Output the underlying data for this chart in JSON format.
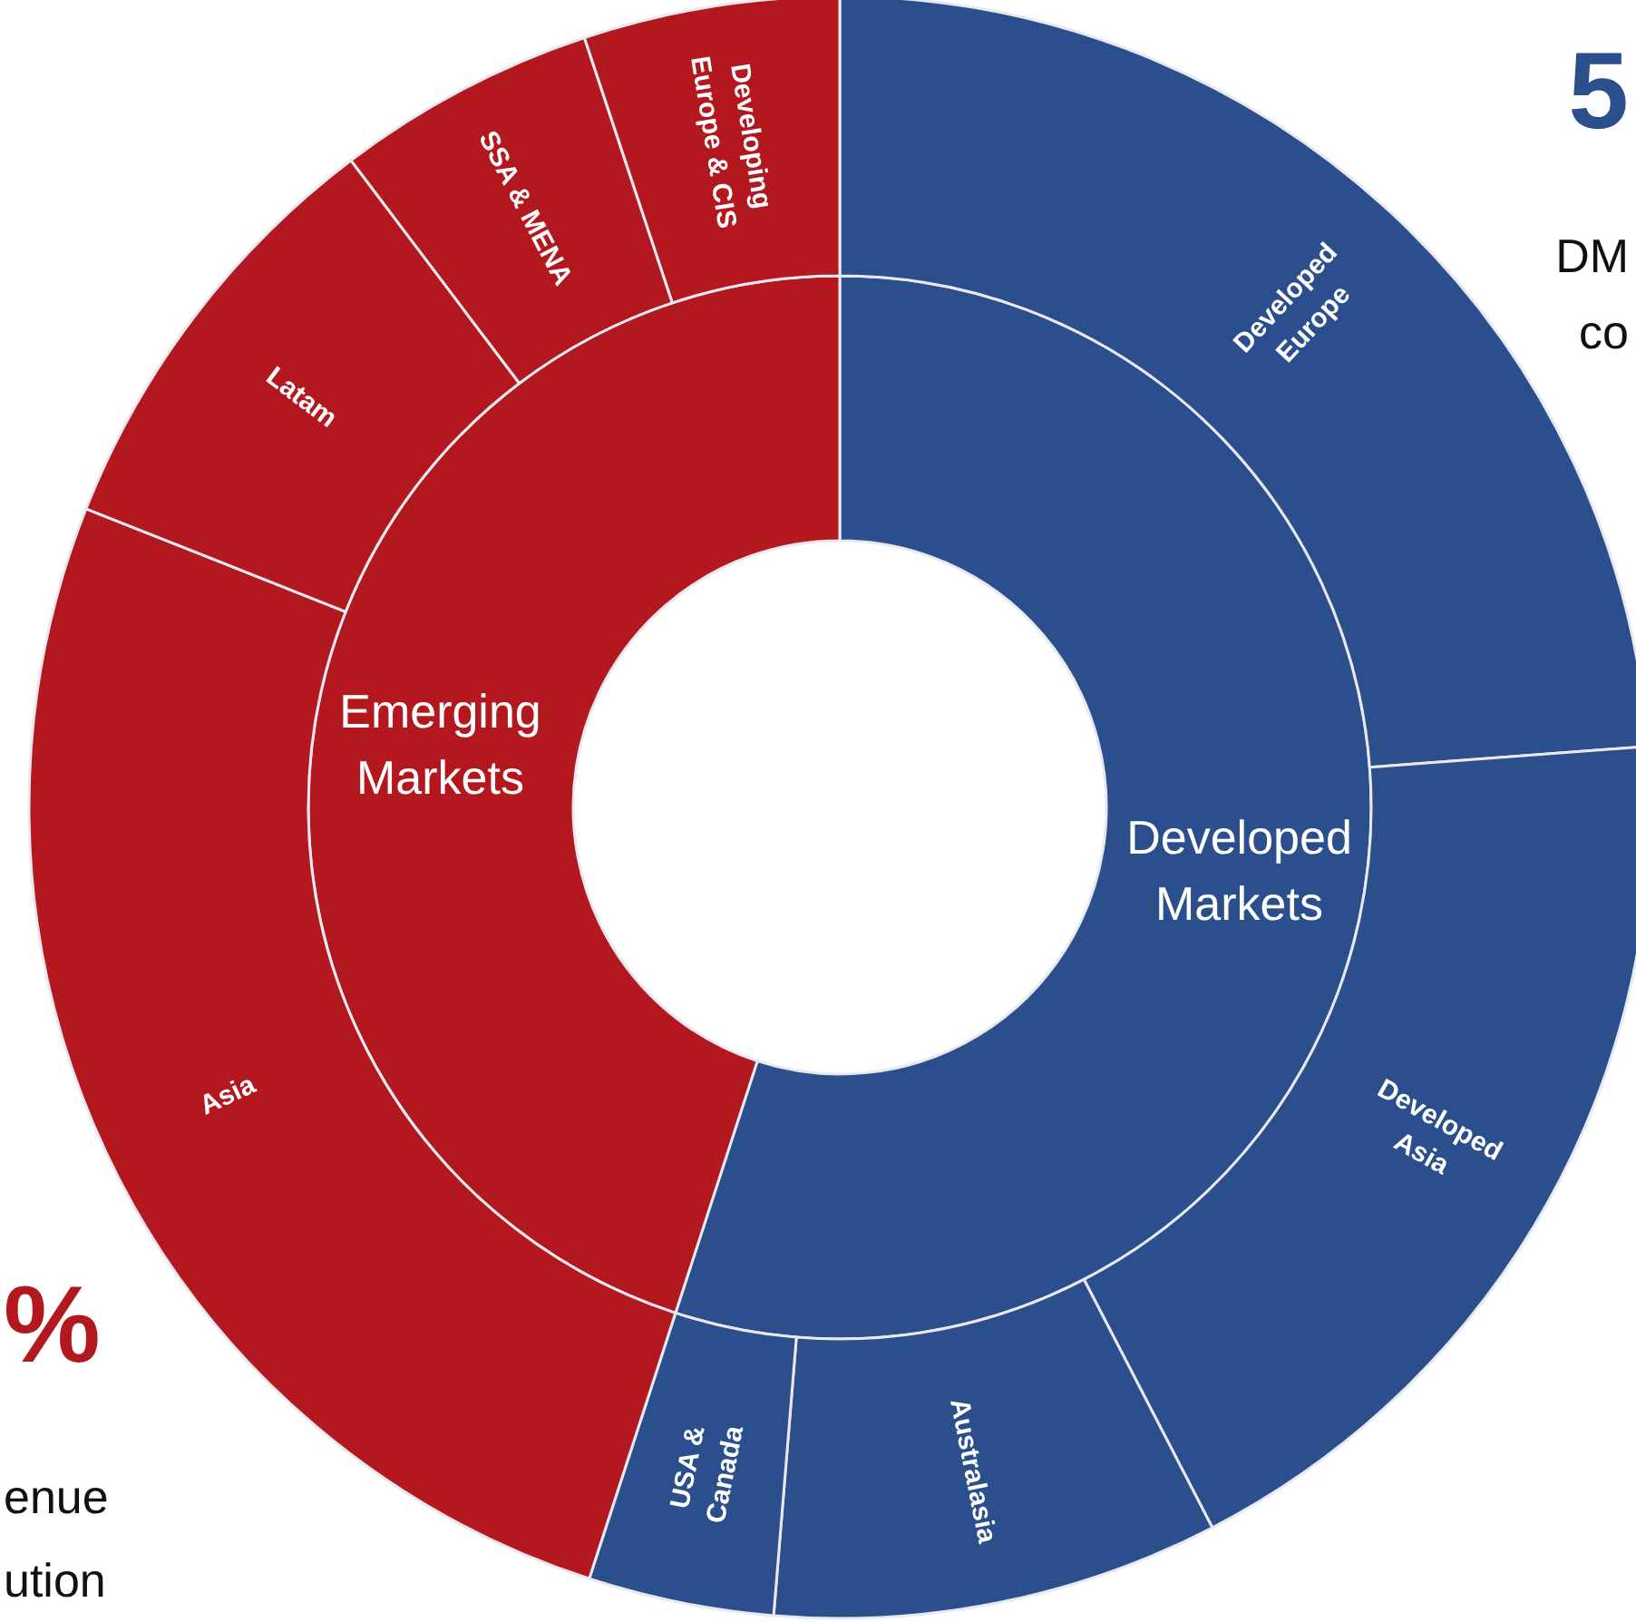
{
  "chart_data": [
    {
      "type": "donut",
      "categories": [
        "Developed\nMarkets",
        "Emerging\nMarkets"
      ],
      "values": [
        55.0,
        45.0
      ],
      "colors": [
        "#2a4f8c",
        "#b3181f"
      ],
      "annotations": [
        "5",
        "DM",
        "co",
        "%",
        "enue",
        "ution"
      ]
    },
    {
      "type": "donut",
      "categories": [
        "Developed\nEurope",
        "Developed\nAsia",
        "Australasia",
        "USA &\nCanada",
        "Asia",
        "Latam",
        "SSA & MENA",
        "Developing\nEurope & CIS"
      ],
      "values": [
        23.8,
        18.6,
        8.9,
        3.7,
        26.0,
        8.7,
        5.2,
        5.1
      ],
      "colors": [
        "#2a4f8c",
        "#2a4f8c",
        "#2a4f8c",
        "#2a4f8c",
        "#b3181f",
        "#b3181f",
        "#b3181f",
        "#b3181f"
      ]
    }
  ]
}
